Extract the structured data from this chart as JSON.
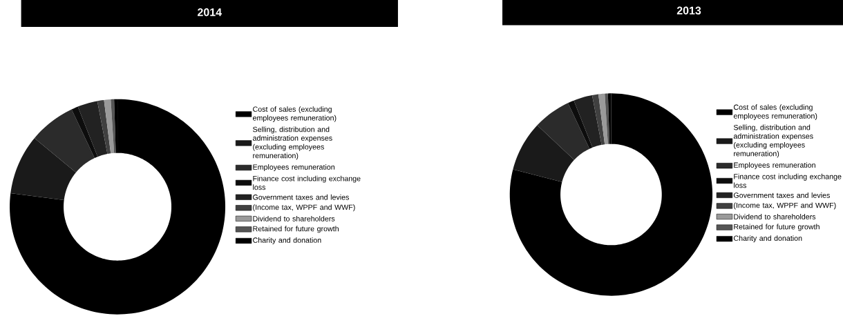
{
  "chart_data": [
    {
      "type": "donut",
      "title": "2014",
      "legend": "right",
      "categories": [
        "Cost of sales (excluding employees remuneration)",
        "Selling, distribution and administration expenses (excluding employees remuneration)",
        "Employees remuneration",
        "Finance cost including exchange loss",
        "Government taxes and levies",
        "(Income tax, WPPF and WWF)",
        "Dividend to shareholders",
        "Retained for future growth",
        "Charity and donation"
      ],
      "values": [
        77,
        9,
        7,
        1,
        3,
        1,
        1,
        0.5,
        0.5
      ],
      "colors": [
        "#000000",
        "#1a1a1a",
        "#2b2b2b",
        "#0d0d0d",
        "#222222",
        "#404040",
        "#9a9a9a",
        "#555555",
        "#000000"
      ]
    },
    {
      "type": "donut",
      "title": "2013",
      "legend": "right",
      "categories": [
        "Cost of sales (excluding employees remuneration)",
        "Selling, distribution and administration expenses (excluding employees remuneration)",
        "Employees remuneration",
        "Finance cost including exchange loss",
        "Government taxes and levies",
        "(Income tax, WPPF and WWF)",
        "Dividend to shareholders",
        "Retained for future growth",
        "Charity and donation"
      ],
      "values": [
        79,
        8,
        6,
        1,
        3,
        1,
        1,
        0.5,
        0.5
      ],
      "colors": [
        "#000000",
        "#1a1a1a",
        "#2b2b2b",
        "#0d0d0d",
        "#222222",
        "#404040",
        "#9a9a9a",
        "#555555",
        "#000000"
      ]
    }
  ]
}
